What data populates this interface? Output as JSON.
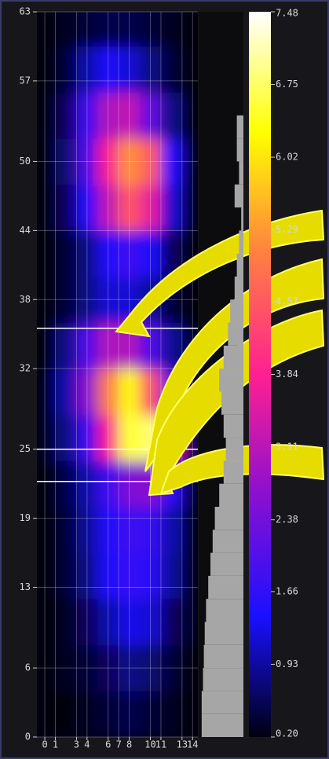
{
  "chart_data": {
    "type": "heatmap",
    "x": [
      0,
      2,
      4,
      6,
      8,
      10,
      12,
      14
    ],
    "y": [
      2,
      6,
      10,
      14,
      18,
      22,
      26,
      30,
      34,
      38,
      42,
      46,
      50,
      54,
      58,
      62
    ],
    "z": [
      [
        0.2,
        0.2,
        0.3,
        0.4,
        0.5,
        0.4,
        0.3,
        0.2
      ],
      [
        0.2,
        0.3,
        0.4,
        0.6,
        0.8,
        0.7,
        0.4,
        0.2
      ],
      [
        0.2,
        0.3,
        0.6,
        1.0,
        1.3,
        1.2,
        0.6,
        0.3
      ],
      [
        0.2,
        0.4,
        0.8,
        1.4,
        1.7,
        1.6,
        0.9,
        0.3
      ],
      [
        0.2,
        0.4,
        0.9,
        1.5,
        1.8,
        1.7,
        1.0,
        0.3
      ],
      [
        0.2,
        0.5,
        1.0,
        1.8,
        2.5,
        2.6,
        1.6,
        0.4
      ],
      [
        0.3,
        0.8,
        1.8,
        3.8,
        6.5,
        6.8,
        3.5,
        0.6
      ],
      [
        0.3,
        1.0,
        2.6,
        5.0,
        6.2,
        4.5,
        2.0,
        0.4
      ],
      [
        0.2,
        0.8,
        2.0,
        3.0,
        3.0,
        2.0,
        0.9,
        0.3
      ],
      [
        0.2,
        0.4,
        0.8,
        1.2,
        1.2,
        0.9,
        0.4,
        0.2
      ],
      [
        0.2,
        0.4,
        0.8,
        1.5,
        1.8,
        1.4,
        0.6,
        0.2
      ],
      [
        0.2,
        0.6,
        1.5,
        3.2,
        4.5,
        3.6,
        1.2,
        0.3
      ],
      [
        0.2,
        0.7,
        2.0,
        3.8,
        5.2,
        4.6,
        1.5,
        0.3
      ],
      [
        0.2,
        0.6,
        1.8,
        3.0,
        3.2,
        2.2,
        0.8,
        0.2
      ],
      [
        0.2,
        0.4,
        1.0,
        1.4,
        1.2,
        0.8,
        0.4,
        0.2
      ],
      [
        0.2,
        0.3,
        0.4,
        0.5,
        0.5,
        0.4,
        0.3,
        0.2
      ]
    ],
    "xlim": [
      -0.75,
      14.5
    ],
    "ylim": [
      0,
      63
    ],
    "xticks": [
      0,
      1,
      3,
      4,
      6,
      7,
      8,
      10,
      11,
      13,
      14
    ],
    "yticks": [
      0,
      6,
      13,
      19,
      25,
      32,
      38,
      44,
      50,
      57,
      63
    ],
    "grid": true,
    "hlines": [
      35.5,
      25,
      22.2
    ],
    "profile": {
      "y": [
        0,
        2,
        4,
        6,
        8,
        10,
        12,
        14,
        16,
        18,
        20,
        22,
        24,
        26,
        28,
        30,
        32,
        34,
        36,
        38,
        40,
        42,
        44,
        46,
        48,
        50,
        52,
        54,
        56,
        58,
        60,
        62
      ],
      "values": [
        0.95,
        0.95,
        0.92,
        0.9,
        0.88,
        0.85,
        0.8,
        0.75,
        0.7,
        0.65,
        0.55,
        0.45,
        0.4,
        0.45,
        0.5,
        0.55,
        0.45,
        0.35,
        0.3,
        0.2,
        0.15,
        0.1,
        0.05,
        0.2,
        0.1,
        0.15,
        0.15,
        0,
        0,
        0,
        0,
        0
      ],
      "xlim": [
        0,
        1
      ],
      "color": "#a6a6a6"
    },
    "colormap": [
      "#000010",
      "#1a10ff",
      "#8a10d0",
      "#ff2090",
      "#ff8040",
      "#ffff00",
      "#ffffff"
    ],
    "clim": [
      0.2,
      7.48
    ],
    "cticks": [
      {
        "value": 0.2,
        "label": "0.20"
      },
      0.93,
      1.66,
      2.38,
      3.11,
      3.84,
      4.57,
      5.29,
      6.02,
      6.75,
      7.48
    ]
  }
}
